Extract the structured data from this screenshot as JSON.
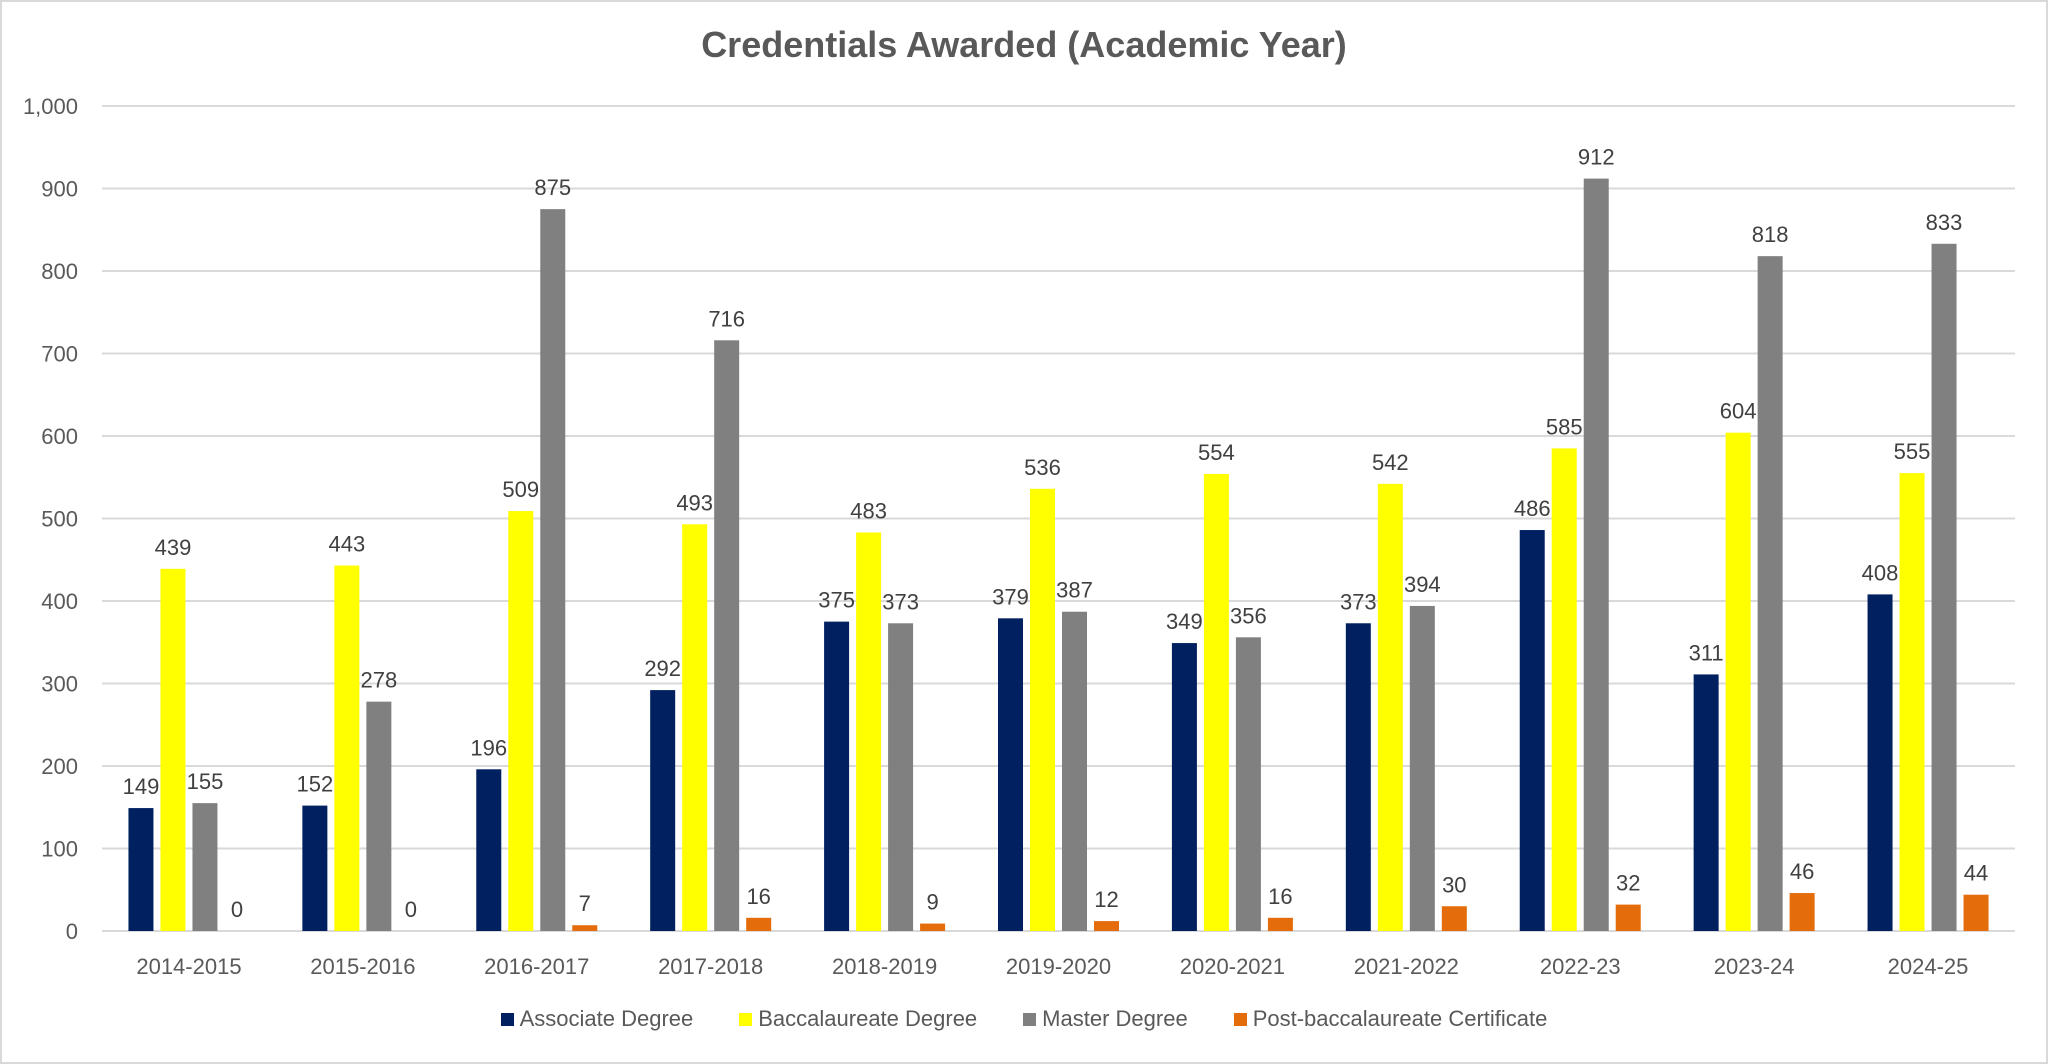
{
  "chart_data": {
    "type": "bar",
    "title": "Credentials Awarded (Academic Year)",
    "xlabel": "",
    "ylabel": "",
    "ylim": [
      0,
      1000
    ],
    "yticks": [
      0,
      100,
      200,
      300,
      400,
      500,
      600,
      700,
      800,
      900,
      1000
    ],
    "ytick_labels": [
      "0",
      "100",
      "200",
      "300",
      "400",
      "500",
      "600",
      "700",
      "800",
      "900",
      "1,000"
    ],
    "grid": true,
    "legend_position": "bottom",
    "categories": [
      "2014-2015",
      "2015-2016",
      "2016-2017",
      "2017-2018",
      "2018-2019",
      "2019-2020",
      "2020-2021",
      "2021-2022",
      "2022-23",
      "2023-24",
      "2024-25"
    ],
    "series": [
      {
        "name": "Associate Degree",
        "color": "#002060",
        "values": [
          149,
          152,
          196,
          292,
          375,
          379,
          349,
          373,
          486,
          311,
          408
        ],
        "labels": [
          "149",
          "152",
          "196",
          "292",
          "375",
          "379",
          "349",
          "373",
          "486",
          "311",
          "408"
        ]
      },
      {
        "name": "Baccalaureate Degree",
        "color": "#FFFF00",
        "values": [
          439,
          443,
          509,
          493,
          483,
          536,
          554,
          542,
          585,
          604,
          555
        ],
        "labels": [
          "439",
          "443",
          "509",
          "493",
          "483",
          "536",
          "554",
          "542",
          "585",
          "604",
          "555"
        ]
      },
      {
        "name": "Master Degree",
        "color": "#808080",
        "values": [
          155,
          278,
          875,
          716,
          373,
          387,
          356,
          394,
          912,
          818,
          833
        ],
        "labels": [
          "155",
          "278",
          "875",
          "716",
          "373",
          "387",
          "356",
          "394",
          "912",
          "818",
          "833"
        ]
      },
      {
        "name": "Post-baccalaureate Certificate",
        "color": "#E46C0A",
        "values": [
          0,
          0,
          7,
          16,
          9,
          12,
          16,
          30,
          32,
          46,
          44
        ],
        "labels": [
          "0",
          "0",
          "7",
          "16",
          "9",
          "12",
          "16",
          "30",
          "32",
          "46",
          "44"
        ]
      }
    ]
  }
}
